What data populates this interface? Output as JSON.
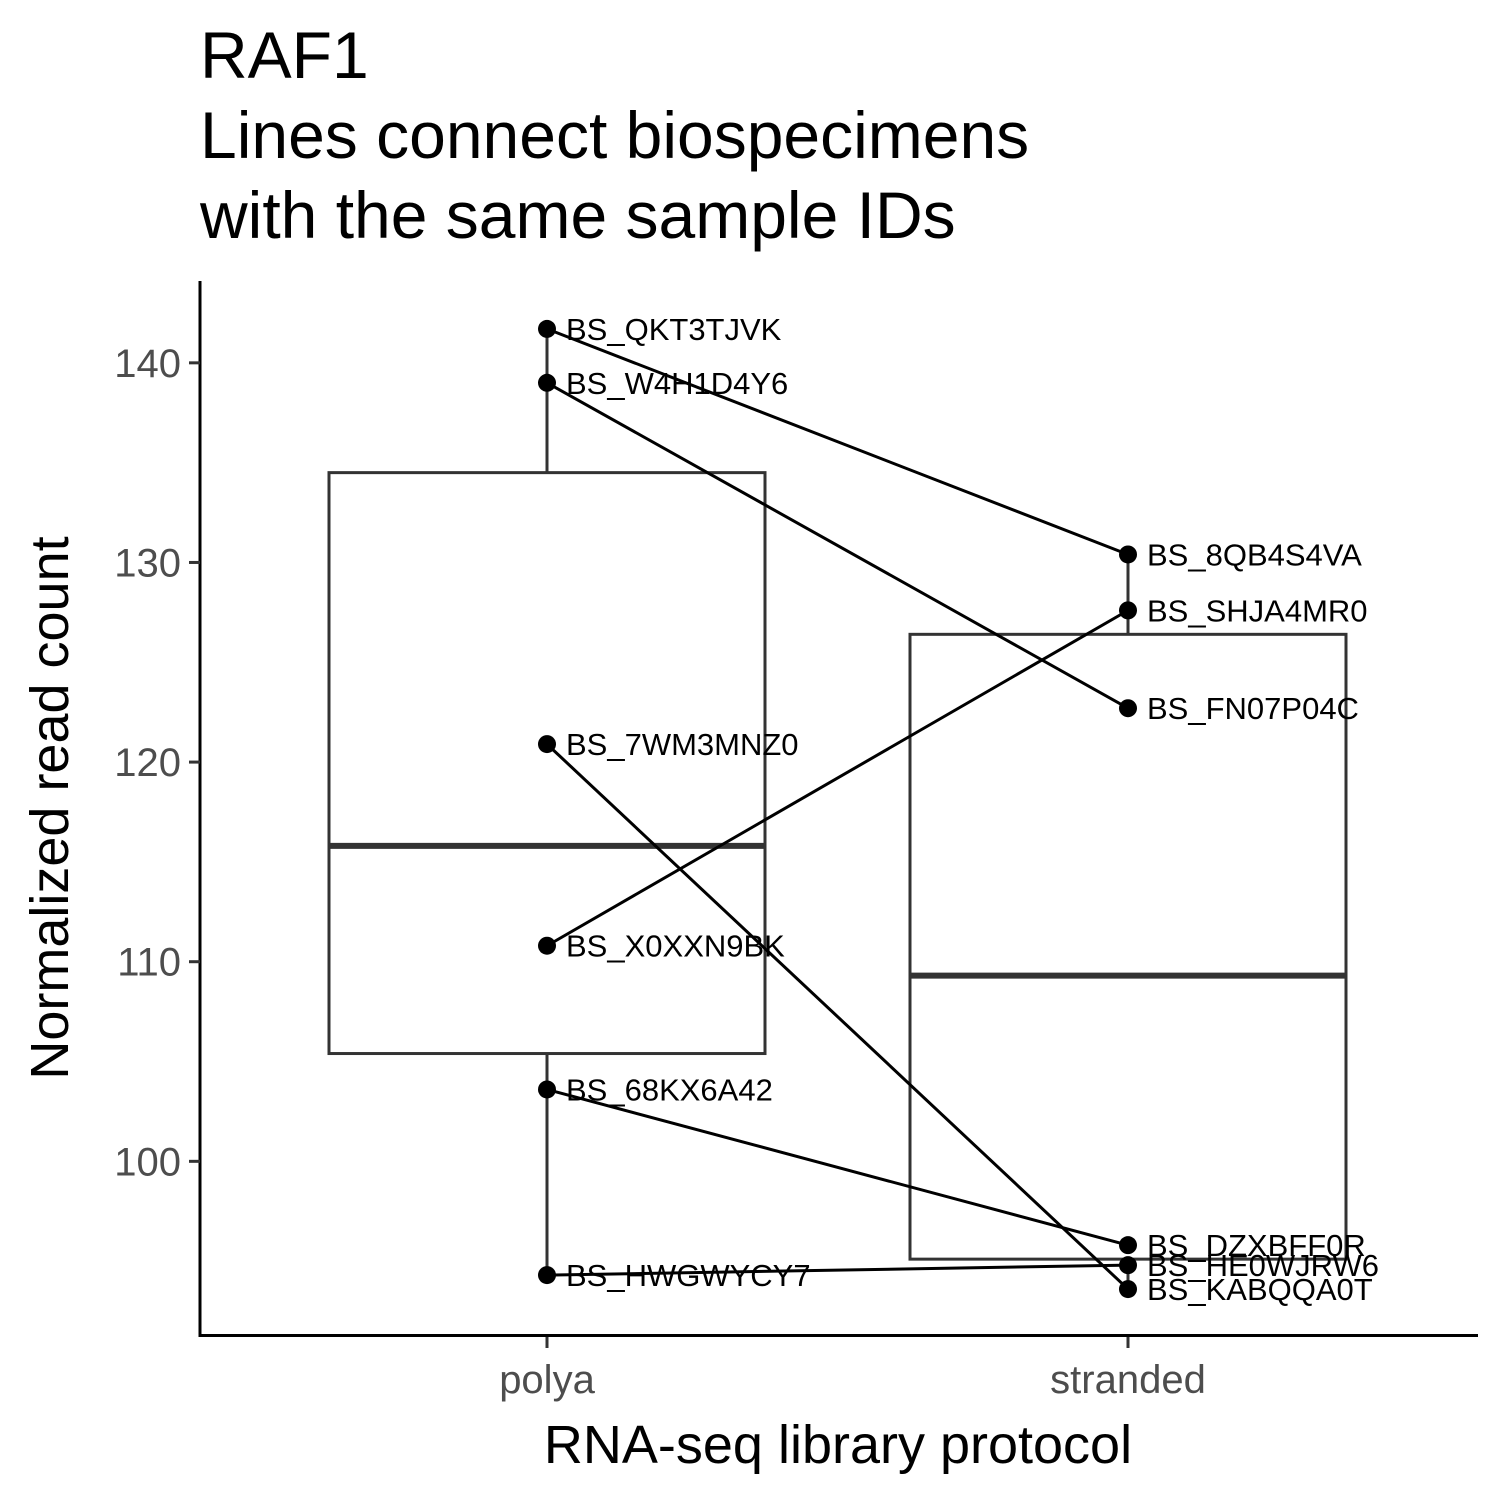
{
  "chart_data": {
    "type": "box",
    "title": "RAF1",
    "subtitle_lines": [
      "Lines connect biospecimens",
      "with the same sample IDs"
    ],
    "xlabel": "RNA-seq library protocol",
    "ylabel": "Normalized read count",
    "categories": [
      "polya",
      "stranded"
    ],
    "ylim": [
      91.3,
      144.1
    ],
    "yticks": [
      100,
      110,
      120,
      130,
      140
    ],
    "grid": false,
    "legend": "none",
    "boxes": [
      {
        "category": "polya",
        "lower_whisker": 94.3,
        "q1": 105.4,
        "median": 115.8,
        "q3": 134.5,
        "upper_whisker": 141.7
      },
      {
        "category": "stranded",
        "lower_whisker": 93.6,
        "q1": 95.1,
        "median": 109.3,
        "q3": 126.4,
        "upper_whisker": 130.4
      }
    ],
    "points": [
      {
        "category": "polya",
        "label": "BS_QKT3TJVK",
        "value": 141.7
      },
      {
        "category": "polya",
        "label": "BS_W4H1D4Y6",
        "value": 139.0
      },
      {
        "category": "polya",
        "label": "BS_7WM3MNZ0",
        "value": 120.9
      },
      {
        "category": "polya",
        "label": "BS_X0XXN9BK",
        "value": 110.8
      },
      {
        "category": "polya",
        "label": "BS_68KX6A42",
        "value": 103.6
      },
      {
        "category": "polya",
        "label": "BS_HWGWYCY7",
        "value": 94.3
      },
      {
        "category": "stranded",
        "label": "BS_8QB4S4VA",
        "value": 130.4
      },
      {
        "category": "stranded",
        "label": "BS_SHJA4MR0",
        "value": 127.6
      },
      {
        "category": "stranded",
        "label": "BS_FN07P04C",
        "value": 122.7
      },
      {
        "category": "stranded",
        "label": "BS_DZXBFF0R",
        "value": 95.8
      },
      {
        "category": "stranded",
        "label": "BS_HE0WJRW6",
        "value": 94.8
      },
      {
        "category": "stranded",
        "label": "BS_KABQQA0T",
        "value": 93.6
      }
    ],
    "pairs": [
      {
        "from": "BS_QKT3TJVK",
        "to": "BS_8QB4S4VA"
      },
      {
        "from": "BS_W4H1D4Y6",
        "to": "BS_FN07P04C"
      },
      {
        "from": "BS_7WM3MNZ0",
        "to": "BS_KABQQA0T"
      },
      {
        "from": "BS_X0XXN9BK",
        "to": "BS_SHJA4MR0"
      },
      {
        "from": "BS_68KX6A42",
        "to": "BS_DZXBFF0R"
      },
      {
        "from": "BS_HWGWYCY7",
        "to": "BS_HE0WJRW6"
      }
    ]
  }
}
